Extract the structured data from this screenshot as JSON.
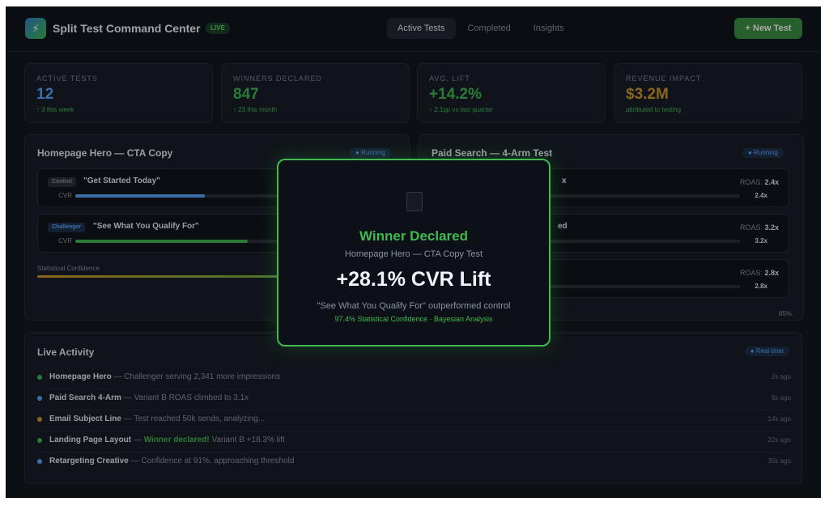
{
  "header": {
    "logo_glyph": "⚡",
    "title": "Split Test Command Center",
    "live_badge": "LIVE",
    "tabs": [
      {
        "label": "Active Tests",
        "active": true
      },
      {
        "label": "Completed",
        "active": false
      },
      {
        "label": "Insights",
        "active": false
      }
    ],
    "new_test_label": "+ New Test"
  },
  "stats": [
    {
      "label": "ACTIVE TESTS",
      "value": "12",
      "sub": "↑ 3 this week",
      "color": "#58a6ff"
    },
    {
      "label": "WINNERS DECLARED",
      "value": "847",
      "sub": "↑ 23 this month",
      "color": "#3fb950"
    },
    {
      "label": "AVG. LIFT",
      "value": "+14.2%",
      "sub": "↑ 2.1pp vs last quarter",
      "color": "#3fb950"
    },
    {
      "label": "REVENUE IMPACT",
      "value": "$3.2M",
      "sub": "attributed to testing",
      "color": "#d29922"
    }
  ],
  "tests": [
    {
      "title": "Homepage Hero — CTA Copy",
      "status": "● Running",
      "variants": [
        {
          "tag": "Control",
          "name": "\"Get Started Today\"",
          "metric": "CVR",
          "fill": 0.42,
          "color": "#58a6ff"
        },
        {
          "tag": "Challenger",
          "name": "\"See What You Qualify For\"",
          "metric": "CVR",
          "fill": 0.56,
          "color": "#3fb950"
        }
      ],
      "confidence_label": "Statistical Confidence",
      "confidence_color": "#d29922"
    },
    {
      "title": "Paid Search — 4-Arm Test",
      "status": "● Running",
      "variants": [
        {
          "name_visible": "x",
          "roas_label": "ROAS:",
          "roas": "2.4x",
          "fill": 0.18,
          "color": "#58a6ff"
        },
        {
          "name_visible": "ed",
          "roas_label": "ROAS:",
          "roas": "3.2x",
          "fill": 0.35,
          "color": "#3fb950"
        },
        {
          "name_visible": "",
          "roas_label": "ROAS:",
          "roas": "2.8x",
          "fill": 0.28,
          "color": "#d29922"
        }
      ],
      "confidence_pct": "85%"
    }
  ],
  "activity": {
    "title": "Live Activity",
    "badge": "● Real-time",
    "items": [
      {
        "color": "#3fb950",
        "name": "Homepage Hero",
        "pre": " — Challenger serving 2,341 more impressions",
        "highlight": "",
        "post": "",
        "time": "2s ago"
      },
      {
        "color": "#58a6ff",
        "name": "Paid Search 4-Arm",
        "pre": " — Variant B ROAS climbed to 3.1x",
        "highlight": "",
        "post": "",
        "time": "8s ago"
      },
      {
        "color": "#d29922",
        "name": "Email Subject Line",
        "pre": " — Test reached 50k sends, analyzing...",
        "highlight": "",
        "post": "",
        "time": "14s ago"
      },
      {
        "color": "#3fb950",
        "name": "Landing Page Layout",
        "pre": " — ",
        "highlight": "Winner declared!",
        "post": " Variant B +18.3% lift",
        "time": "22s ago"
      },
      {
        "color": "#58a6ff",
        "name": "Retargeting Creative",
        "pre": " — Confidence at 91%, approaching threshold",
        "highlight": "",
        "post": "",
        "time": "35s ago"
      }
    ]
  },
  "modal": {
    "icon": "trophy-icon",
    "title": "Winner Declared",
    "subtitle": "Homepage Hero — CTA Copy Test",
    "lift": "+28.1% CVR Lift",
    "description": "\"See What You Qualify For\" outperformed control",
    "confidence": "97.4% Statistical Confidence · Bayesian Analysis"
  }
}
